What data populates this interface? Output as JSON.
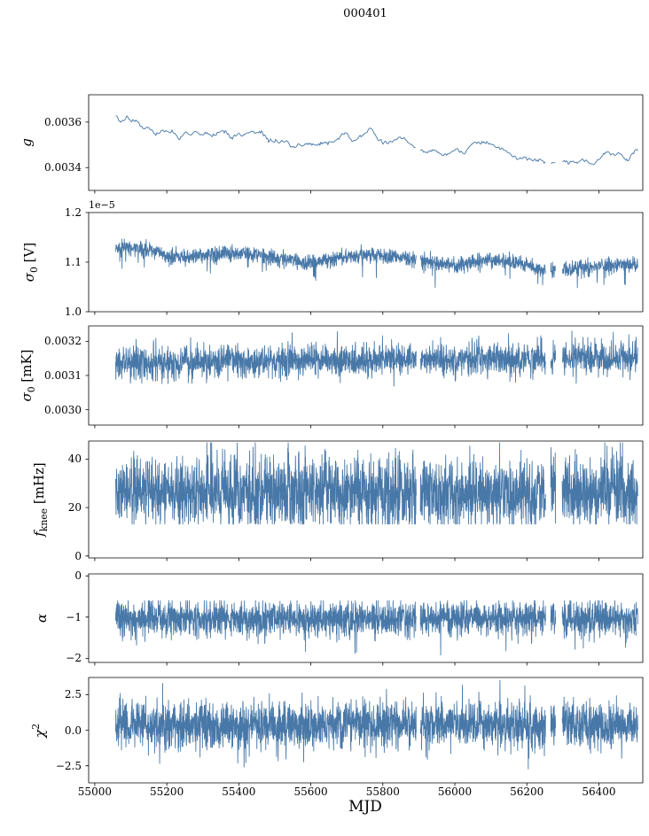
{
  "title": "000401",
  "xlabel": "MJD",
  "chart_data": {
    "type": "line",
    "title": "000401",
    "xlabel": "MJD",
    "line_color": "#4878a8",
    "background": "#ffffff",
    "x_range": [
      54983,
      56522
    ],
    "x_data_range": [
      55058,
      56508
    ],
    "x_ticks": [
      {
        "v": 55000,
        "label": "55000"
      },
      {
        "v": 55200,
        "label": "55200"
      },
      {
        "v": 55400,
        "label": "55400"
      },
      {
        "v": 55600,
        "label": "55600"
      },
      {
        "v": 55800,
        "label": "55800"
      },
      {
        "v": 56000,
        "label": "56000"
      },
      {
        "v": 56200,
        "label": "56200"
      },
      {
        "v": 56400,
        "label": "56400"
      }
    ],
    "gaps": [
      [
        55893,
        55904
      ],
      [
        56252,
        56266
      ],
      [
        56280,
        56298
      ]
    ],
    "panels": [
      {
        "id": "g",
        "ylabel_text": "g",
        "ylabel_segments": [
          {
            "t": "g",
            "style": "italic"
          }
        ],
        "ylim": [
          0.0033,
          0.00372
        ],
        "yticks": [
          {
            "v": 0.0034,
            "label": "0.0034"
          },
          {
            "v": 0.0036,
            "label": "0.0036"
          }
        ],
        "offset_text": null,
        "gen": {
          "n": 520,
          "smooth": 3,
          "noise": 1.05e-05,
          "spike": null,
          "clip": [
            0.003335,
            0.003695
          ],
          "baseline": [
            [
              55058,
              0.00361
            ],
            [
              55090,
              0.003605
            ],
            [
              55130,
              0.003575
            ],
            [
              55170,
              0.003558
            ],
            [
              55210,
              0.003545
            ],
            [
              55260,
              0.003555
            ],
            [
              55300,
              0.003545
            ],
            [
              55340,
              0.003552
            ],
            [
              55380,
              0.003545
            ],
            [
              55415,
              0.003535
            ],
            [
              55440,
              0.003572
            ],
            [
              55465,
              0.003545
            ],
            [
              55520,
              0.003512
            ],
            [
              55560,
              0.003492
            ],
            [
              55585,
              0.003515
            ],
            [
              55615,
              0.003492
            ],
            [
              55650,
              0.003512
            ],
            [
              55690,
              0.003528
            ],
            [
              55730,
              0.003538
            ],
            [
              55770,
              0.003542
            ],
            [
              55810,
              0.003525
            ],
            [
              55845,
              0.003532
            ],
            [
              55875,
              0.003495
            ],
            [
              55905,
              0.003462
            ],
            [
              55935,
              0.003475
            ],
            [
              55965,
              0.003452
            ],
            [
              55995,
              0.003468
            ],
            [
              56025,
              0.003478
            ],
            [
              56065,
              0.003508
            ],
            [
              56105,
              0.003498
            ],
            [
              56145,
              0.003468
            ],
            [
              56185,
              0.003442
            ],
            [
              56225,
              0.003432
            ],
            [
              56265,
              0.003412
            ],
            [
              56305,
              0.003422
            ],
            [
              56345,
              0.003438
            ],
            [
              56385,
              0.003428
            ],
            [
              56425,
              0.003438
            ],
            [
              56465,
              0.003448
            ],
            [
              56508,
              0.003458
            ]
          ]
        }
      },
      {
        "id": "sigma0_V",
        "ylabel_text": "σ0 [V]",
        "ylabel_segments": [
          {
            "t": "σ",
            "style": "italic"
          },
          {
            "t": "0",
            "style": "sub"
          },
          {
            "t": " [V]",
            "style": "normal"
          }
        ],
        "ylim": [
          1.0,
          1.2
        ],
        "yticks": [
          {
            "v": 1.0,
            "label": "1.0"
          },
          {
            "v": 1.1,
            "label": "1.1"
          },
          {
            "v": 1.2,
            "label": "1.2"
          }
        ],
        "offset_text": "1e−5",
        "gen": {
          "n": 2300,
          "smooth": 0,
          "noise": 0.0075,
          "spike": {
            "prob": 0.012,
            "scale": 0.035,
            "sign": -1
          },
          "clip": [
            1.008,
            1.196
          ],
          "baseline": [
            [
              55058,
              1.127
            ],
            [
              55100,
              1.13
            ],
            [
              55150,
              1.124
            ],
            [
              55200,
              1.112
            ],
            [
              55250,
              1.11
            ],
            [
              55300,
              1.114
            ],
            [
              55350,
              1.117
            ],
            [
              55400,
              1.118
            ],
            [
              55450,
              1.114
            ],
            [
              55500,
              1.11
            ],
            [
              55550,
              1.103
            ],
            [
              55590,
              1.097
            ],
            [
              55650,
              1.105
            ],
            [
              55700,
              1.111
            ],
            [
              55750,
              1.113
            ],
            [
              55800,
              1.114
            ],
            [
              55850,
              1.11
            ],
            [
              55900,
              1.104
            ],
            [
              55950,
              1.099
            ],
            [
              56000,
              1.095
            ],
            [
              56050,
              1.1
            ],
            [
              56100,
              1.105
            ],
            [
              56150,
              1.102
            ],
            [
              56200,
              1.094
            ],
            [
              56250,
              1.083
            ],
            [
              56300,
              1.086
            ],
            [
              56350,
              1.089
            ],
            [
              56400,
              1.093
            ],
            [
              56450,
              1.095
            ],
            [
              56508,
              1.093
            ]
          ]
        }
      },
      {
        "id": "sigma0_mK",
        "ylabel_text": "σ0 [mK]",
        "ylabel_segments": [
          {
            "t": "σ",
            "style": "italic"
          },
          {
            "t": "0",
            "style": "sub"
          },
          {
            "t": " [mK]",
            "style": "normal"
          }
        ],
        "ylim": [
          0.002955,
          0.003245
        ],
        "yticks": [
          {
            "v": 0.003,
            "label": "0.0030"
          },
          {
            "v": 0.0031,
            "label": "0.0031"
          },
          {
            "v": 0.0032,
            "label": "0.0032"
          }
        ],
        "offset_text": null,
        "gen": {
          "n": 2300,
          "smooth": 0,
          "noise": 2.4e-05,
          "spike": {
            "prob": 0.012,
            "scale": 6e-05,
            "sign": 0
          },
          "clip": [
            0.003048,
            0.003238
          ],
          "baseline": [
            [
              55058,
              0.003135
            ],
            [
              55400,
              0.00314
            ],
            [
              55700,
              0.003143
            ],
            [
              56000,
              0.003147
            ],
            [
              56250,
              0.00315
            ],
            [
              56508,
              0.00315
            ]
          ]
        }
      },
      {
        "id": "f_knee",
        "ylabel_text": "f_knee [mHz]",
        "ylabel_segments": [
          {
            "t": "f",
            "style": "italic"
          },
          {
            "t": "knee",
            "style": "sub"
          },
          {
            "t": " [mHz]",
            "style": "normal"
          }
        ],
        "ylim": [
          -0.8,
          47.5
        ],
        "yticks": [
          {
            "v": 0,
            "label": "0"
          },
          {
            "v": 20,
            "label": "20"
          },
          {
            "v": 40,
            "label": "40"
          }
        ],
        "offset_text": null,
        "gen": {
          "n": 2600,
          "smooth": 0,
          "noise": 7,
          "spike": {
            "prob": 0.02,
            "scale": 12,
            "sign": 1
          },
          "clip": [
            13.2,
            46.8
          ],
          "baseline": [
            [
              55058,
              26
            ],
            [
              55600,
              27
            ],
            [
              56000,
              25.5
            ],
            [
              56508,
              26.5
            ]
          ]
        }
      },
      {
        "id": "alpha",
        "ylabel_text": "α",
        "ylabel_segments": [
          {
            "t": "α",
            "style": "italic"
          }
        ],
        "ylim": [
          -2.1,
          0.05
        ],
        "yticks": [
          {
            "v": 0,
            "label": "0"
          },
          {
            "v": -1,
            "label": "−1"
          },
          {
            "v": -2,
            "label": "−2"
          }
        ],
        "offset_text": null,
        "gen": {
          "n": 2600,
          "smooth": 0,
          "noise": 0.2,
          "spike": {
            "prob": 0.05,
            "scale": 0.45,
            "sign": -1
          },
          "clip": [
            -2.06,
            -0.6
          ],
          "baseline": [
            [
              55058,
              -1.02
            ],
            [
              56508,
              -1.02
            ]
          ]
        }
      },
      {
        "id": "chi2",
        "ylabel_text": "χ2",
        "ylabel_segments": [
          {
            "t": "χ",
            "style": "italic"
          },
          {
            "t": "2",
            "style": "sup"
          }
        ],
        "ylim": [
          -3.7,
          3.7
        ],
        "yticks": [
          {
            "v": 2.5,
            "label": "2.5"
          },
          {
            "v": 0,
            "label": "0.0"
          },
          {
            "v": -2.5,
            "label": "−2.5"
          }
        ],
        "offset_text": null,
        "gen": {
          "n": 2600,
          "smooth": 0,
          "noise": 0.8,
          "spike": {
            "prob": 0.03,
            "scale": 1.3,
            "sign": 0
          },
          "clip": [
            -3.55,
            3.5
          ],
          "baseline": [
            [
              55058,
              0.3
            ],
            [
              56508,
              0.35
            ]
          ]
        }
      }
    ]
  }
}
